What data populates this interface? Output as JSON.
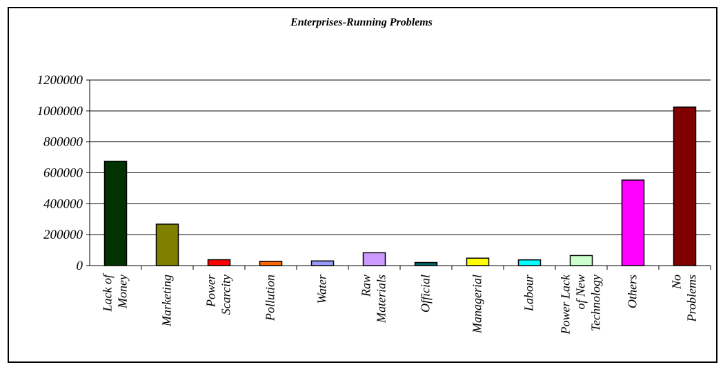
{
  "chart_data": {
    "type": "bar",
    "title": "Enterprises-Running Problems",
    "xlabel": "",
    "ylabel": "",
    "ylim": [
      0,
      1200000
    ],
    "yticks": [
      0,
      200000,
      400000,
      600000,
      800000,
      1000000,
      1200000
    ],
    "ytick_labels": [
      "0",
      "200000",
      "400000",
      "600000",
      "800000",
      "1000000",
      "1200000"
    ],
    "grid": true,
    "legend": "none",
    "categories": [
      "Lack of Money",
      "Marketing",
      "Power Scarcity",
      "Pollution",
      "Water",
      "Raw Materials",
      "Official",
      "Managerial",
      "Labour",
      "Power Lack of New Technology",
      "Others",
      "No Problems"
    ],
    "category_label_lines": [
      [
        "Lack of",
        "Money"
      ],
      [
        "Marketing"
      ],
      [
        "Power",
        "Scarcity"
      ],
      [
        "Pollution"
      ],
      [
        "Water"
      ],
      [
        "Raw",
        "Materials"
      ],
      [
        "Official"
      ],
      [
        "Managerial"
      ],
      [
        "Labour"
      ],
      [
        "Power Lack",
        "of New",
        "Technology"
      ],
      [
        "Others"
      ],
      [
        "No",
        "Problems"
      ]
    ],
    "values": [
      675000,
      268000,
      38000,
      28000,
      30000,
      83000,
      20000,
      48000,
      37000,
      65000,
      553000,
      1025000
    ],
    "colors": [
      "#003300",
      "#808000",
      "#ff0000",
      "#ff6600",
      "#9999ff",
      "#cc99ff",
      "#006666",
      "#ffff00",
      "#00ffff",
      "#ccffcc",
      "#ff00ff",
      "#800000"
    ]
  }
}
